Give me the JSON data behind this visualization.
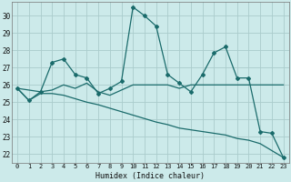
{
  "xlabel": "Humidex (Indice chaleur)",
  "bg_color": "#cceaea",
  "grid_color": "#aacccc",
  "line_color": "#1a6b6b",
  "xlim": [
    -0.5,
    23.5
  ],
  "ylim": [
    21.5,
    30.8
  ],
  "xticks": [
    0,
    1,
    2,
    3,
    4,
    5,
    6,
    7,
    8,
    9,
    10,
    11,
    12,
    13,
    14,
    15,
    16,
    17,
    18,
    19,
    20,
    21,
    22,
    23
  ],
  "yticks": [
    22,
    23,
    24,
    25,
    26,
    27,
    28,
    29,
    30
  ],
  "line1_x": [
    0,
    1,
    2,
    3,
    4,
    5,
    6,
    7,
    8,
    9,
    10,
    11,
    12,
    13,
    14,
    15,
    16,
    17,
    18,
    19,
    20,
    21,
    22,
    23
  ],
  "line1_y": [
    25.8,
    25.1,
    25.6,
    27.3,
    27.5,
    26.6,
    26.4,
    25.5,
    25.8,
    26.2,
    30.5,
    30.0,
    29.4,
    26.6,
    26.1,
    25.6,
    26.6,
    27.85,
    28.2,
    26.4,
    26.4,
    23.3,
    23.2,
    21.8
  ],
  "line2_x": [
    0,
    2,
    3,
    4,
    5,
    6,
    7,
    8,
    9,
    10,
    11,
    12,
    13,
    14,
    15,
    16,
    17,
    18,
    19,
    20,
    21,
    22,
    23
  ],
  "line2_y": [
    25.8,
    25.6,
    25.7,
    26.0,
    25.8,
    26.1,
    25.6,
    25.4,
    25.7,
    26.0,
    26.0,
    26.0,
    26.0,
    25.8,
    26.0,
    26.0,
    26.0,
    26.0,
    26.0,
    26.0,
    26.0,
    26.0,
    26.0
  ],
  "line3_x": [
    0,
    1,
    2,
    3,
    4,
    5,
    6,
    7,
    8,
    9,
    10,
    11,
    12,
    13,
    14,
    15,
    16,
    17,
    18,
    19,
    20,
    21,
    22,
    23
  ],
  "line3_y": [
    25.8,
    25.1,
    25.5,
    25.5,
    25.4,
    25.2,
    25.0,
    24.85,
    24.65,
    24.45,
    24.25,
    24.05,
    23.85,
    23.7,
    23.5,
    23.4,
    23.3,
    23.2,
    23.1,
    22.9,
    22.8,
    22.6,
    22.2,
    21.8
  ]
}
